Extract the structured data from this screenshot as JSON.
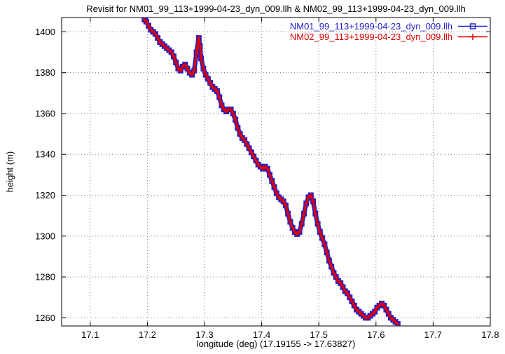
{
  "chart": {
    "title": "Revisit for NM01_99_113+1999-04-23_dyn_009.llh & NM02_99_113+1999-04-23_dyn_009.llh",
    "xlabel": "longitude (deg) (17.19155 -> 17.63827)",
    "ylabel": "height (m)"
  },
  "chart_data": {
    "type": "line",
    "title": "Revisit for NM01_99_113+1999-04-23_dyn_009.llh & NM02_99_113+1999-04-23_dyn_009.llh",
    "xlabel": "longitude (deg) (17.19155 -> 17.63827)",
    "ylabel": "height (m)",
    "xlim": [
      17.05,
      17.8
    ],
    "ylim": [
      1256,
      1407
    ],
    "xticks": [
      17.1,
      17.2,
      17.3,
      17.4,
      17.5,
      17.6,
      17.7,
      17.8
    ],
    "yticks": [
      1260,
      1280,
      1300,
      1320,
      1340,
      1360,
      1380,
      1400
    ],
    "grid": true,
    "legend_position": "top-right",
    "x": [
      17.195,
      17.198,
      17.202,
      17.206,
      17.21,
      17.214,
      17.218,
      17.222,
      17.226,
      17.23,
      17.234,
      17.238,
      17.242,
      17.246,
      17.25,
      17.254,
      17.258,
      17.262,
      17.266,
      17.27,
      17.274,
      17.278,
      17.282,
      17.286,
      17.29,
      17.292,
      17.294,
      17.298,
      17.302,
      17.306,
      17.31,
      17.314,
      17.318,
      17.322,
      17.326,
      17.33,
      17.334,
      17.338,
      17.342,
      17.346,
      17.35,
      17.354,
      17.358,
      17.362,
      17.366,
      17.37,
      17.374,
      17.378,
      17.382,
      17.386,
      17.39,
      17.394,
      17.398,
      17.402,
      17.406,
      17.41,
      17.414,
      17.418,
      17.422,
      17.426,
      17.43,
      17.434,
      17.438,
      17.442,
      17.446,
      17.45,
      17.454,
      17.458,
      17.462,
      17.466,
      17.47,
      17.474,
      17.478,
      17.482,
      17.486,
      17.49,
      17.494,
      17.498,
      17.502,
      17.506,
      17.51,
      17.514,
      17.518,
      17.522,
      17.526,
      17.53,
      17.534,
      17.538,
      17.542,
      17.546,
      17.55,
      17.554,
      17.558,
      17.562,
      17.566,
      17.57,
      17.574,
      17.578,
      17.582,
      17.586,
      17.59,
      17.594,
      17.598,
      17.602,
      17.606,
      17.61,
      17.614,
      17.618,
      17.622,
      17.626,
      17.63,
      17.634,
      17.638
    ],
    "series": [
      {
        "name": "NM01_99_113+1999-04-23_dyn_009.llh",
        "color": "#2020cc",
        "marker": "square",
        "y": [
          1406,
          1405,
          1403,
          1401,
          1400,
          1399,
          1397,
          1395,
          1394,
          1393,
          1392,
          1391,
          1390,
          1388,
          1385,
          1382,
          1381,
          1383,
          1384,
          1382,
          1380,
          1379,
          1381,
          1390,
          1397,
          1393,
          1387,
          1382,
          1379,
          1377,
          1375,
          1373,
          1372,
          1371,
          1368,
          1364,
          1362,
          1361,
          1362,
          1362,
          1360,
          1357,
          1353,
          1350,
          1348,
          1347,
          1345,
          1343,
          1341,
          1339,
          1337,
          1335,
          1334,
          1333,
          1334,
          1333,
          1330,
          1327,
          1324,
          1321,
          1319,
          1318,
          1317,
          1315,
          1311,
          1307,
          1304,
          1302,
          1301,
          1302,
          1306,
          1311,
          1316,
          1319,
          1320,
          1317,
          1311,
          1306,
          1302,
          1299,
          1296,
          1292,
          1288,
          1285,
          1282,
          1280,
          1278,
          1277,
          1275,
          1273,
          1272,
          1270,
          1268,
          1266,
          1264,
          1263,
          1262,
          1261,
          1260,
          1260,
          1261,
          1262,
          1263,
          1265,
          1266,
          1267,
          1266,
          1264,
          1262,
          1260,
          1259,
          1258,
          1257
        ]
      },
      {
        "name": "NM02_99_113+1999-04-23_dyn_009.llh",
        "color": "#dd0000",
        "marker": "plus",
        "y": [
          1406,
          1405,
          1403,
          1401,
          1400,
          1399,
          1397,
          1395,
          1394,
          1393,
          1392,
          1391,
          1390,
          1388,
          1385,
          1382,
          1381,
          1383,
          1384,
          1382,
          1380,
          1379,
          1381,
          1390,
          1397,
          1393,
          1387,
          1382,
          1379,
          1377,
          1375,
          1373,
          1372,
          1371,
          1368,
          1364,
          1362,
          1361,
          1362,
          1362,
          1360,
          1357,
          1353,
          1350,
          1348,
          1347,
          1345,
          1343,
          1341,
          1339,
          1337,
          1335,
          1334,
          1333,
          1334,
          1333,
          1330,
          1327,
          1324,
          1321,
          1319,
          1318,
          1317,
          1315,
          1311,
          1307,
          1304,
          1302,
          1301,
          1302,
          1306,
          1311,
          1316,
          1319,
          1320,
          1317,
          1311,
          1306,
          1302,
          1299,
          1296,
          1292,
          1288,
          1285,
          1282,
          1280,
          1278,
          1277,
          1275,
          1273,
          1272,
          1270,
          1268,
          1266,
          1264,
          1263,
          1262,
          1261,
          1260,
          1260,
          1261,
          1262,
          1263,
          1265,
          1266,
          1267,
          1266,
          1264,
          1262,
          1260,
          1259,
          1258,
          1257
        ]
      }
    ]
  }
}
